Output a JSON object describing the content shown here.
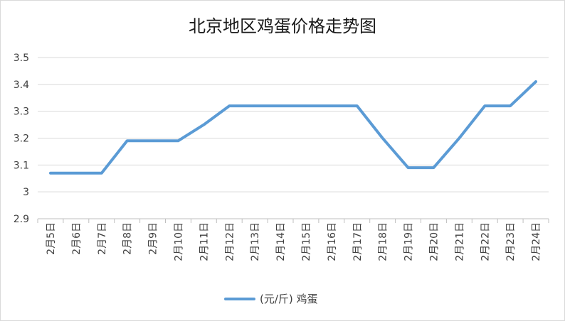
{
  "chart_data": {
    "type": "line",
    "title": "北京地区鸡蛋价格走势图",
    "xlabel": "",
    "ylabel": "",
    "categories": [
      "2月5日",
      "2月6日",
      "2月7日",
      "2月8日",
      "2月9日",
      "2月10日",
      "2月11日",
      "2月12日",
      "2月13日",
      "2月14日",
      "2月15日",
      "2月16日",
      "2月17日",
      "2月18日",
      "2月19日",
      "2月20日",
      "2月21日",
      "2月22日",
      "2月23日",
      "2月24日"
    ],
    "series": [
      {
        "name": "(元/斤) 鸡蛋",
        "values": [
          3.07,
          3.07,
          3.07,
          3.19,
          3.19,
          3.19,
          3.25,
          3.32,
          3.32,
          3.32,
          3.32,
          3.32,
          3.32,
          3.2,
          3.09,
          3.09,
          3.2,
          3.32,
          3.32,
          3.41
        ],
        "color": "#5b9bd5"
      }
    ],
    "yticks": [
      "2.9",
      "3",
      "3.1",
      "3.2",
      "3.3",
      "3.4",
      "3.5"
    ],
    "ylim": [
      2.9,
      3.5
    ],
    "grid": true,
    "legend": "bottom"
  }
}
